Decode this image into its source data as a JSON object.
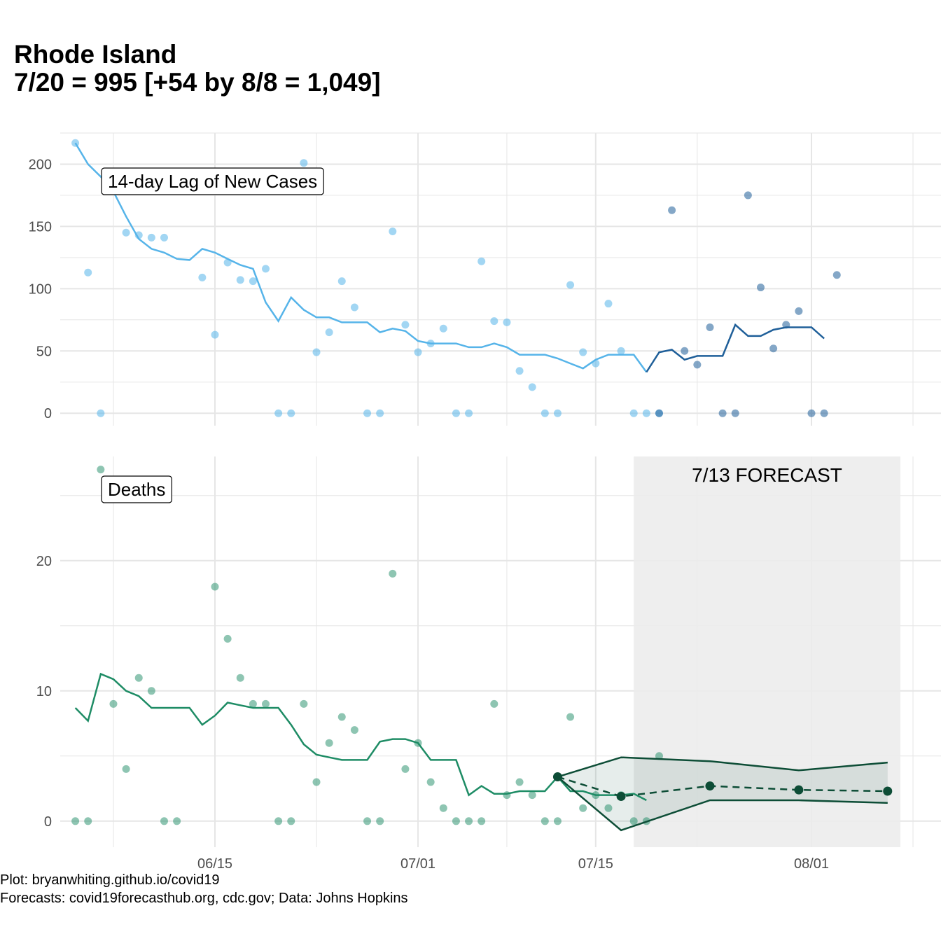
{
  "title": {
    "line1": "Rhode Island",
    "line2": "7/20 = 995 [+54 by 8/8 = 1,049]"
  },
  "caption": {
    "line1": "Plot: bryanwhiting.github.io/covid19",
    "line2": "Forecasts: covid19forecasthub.org, cdc.gov; Data: Johns Hopkins"
  },
  "colors": {
    "cases_light": "#56B4E9",
    "cases_dark": "#1F5F99",
    "deaths": "#1E8C65",
    "forecast": "#0D4D36",
    "forecast_band": "#EEEEEE",
    "grid": "#E6E6E6"
  },
  "chart_data": [
    {
      "type": "scatter",
      "panel_label": "14-day Lag of New Cases",
      "x_axis": {
        "type": "date",
        "range": [
          "2020-06-03",
          "2020-08-09"
        ],
        "tick_labels": [
          "06/15",
          "07/01",
          "07/15",
          "08/01"
        ],
        "tick_dates": [
          "2020-06-15",
          "2020-07-01",
          "2020-07-15",
          "2020-08-01"
        ]
      },
      "y_axis": {
        "range": [
          -10,
          225
        ],
        "ticks": [
          0,
          50,
          100,
          150,
          200
        ]
      },
      "grid": true,
      "points": [
        {
          "x": "2020-06-04",
          "y": 217
        },
        {
          "x": "2020-06-05",
          "y": 113
        },
        {
          "x": "2020-06-06",
          "y": 0
        },
        {
          "x": "2020-06-07",
          "y": 190
        },
        {
          "x": "2020-06-08",
          "y": 145
        },
        {
          "x": "2020-06-09",
          "y": 143
        },
        {
          "x": "2020-06-10",
          "y": 141
        },
        {
          "x": "2020-06-11",
          "y": 141
        },
        {
          "x": "2020-06-14",
          "y": 109
        },
        {
          "x": "2020-06-15",
          "y": 63
        },
        {
          "x": "2020-06-16",
          "y": 121
        },
        {
          "x": "2020-06-17",
          "y": 107
        },
        {
          "x": "2020-06-18",
          "y": 106
        },
        {
          "x": "2020-06-19",
          "y": 116
        },
        {
          "x": "2020-06-20",
          "y": 0
        },
        {
          "x": "2020-06-21",
          "y": 0
        },
        {
          "x": "2020-06-22",
          "y": 201
        },
        {
          "x": "2020-06-23",
          "y": 49
        },
        {
          "x": "2020-06-24",
          "y": 65
        },
        {
          "x": "2020-06-25",
          "y": 106
        },
        {
          "x": "2020-06-26",
          "y": 85
        },
        {
          "x": "2020-06-27",
          "y": 0
        },
        {
          "x": "2020-06-28",
          "y": 0
        },
        {
          "x": "2020-06-29",
          "y": 146
        },
        {
          "x": "2020-06-30",
          "y": 71
        },
        {
          "x": "2020-07-01",
          "y": 49
        },
        {
          "x": "2020-07-02",
          "y": 56
        },
        {
          "x": "2020-07-03",
          "y": 68
        },
        {
          "x": "2020-07-04",
          "y": 0
        },
        {
          "x": "2020-07-05",
          "y": 0
        },
        {
          "x": "2020-07-06",
          "y": 122
        },
        {
          "x": "2020-07-07",
          "y": 74
        },
        {
          "x": "2020-07-08",
          "y": 73
        },
        {
          "x": "2020-07-09",
          "y": 34
        },
        {
          "x": "2020-07-10",
          "y": 21
        },
        {
          "x": "2020-07-11",
          "y": 0
        },
        {
          "x": "2020-07-12",
          "y": 0
        },
        {
          "x": "2020-07-13",
          "y": 103
        },
        {
          "x": "2020-07-14",
          "y": 49
        },
        {
          "x": "2020-07-15",
          "y": 40
        },
        {
          "x": "2020-07-16",
          "y": 88
        },
        {
          "x": "2020-07-17",
          "y": 50
        },
        {
          "x": "2020-07-18",
          "y": 0
        },
        {
          "x": "2020-07-19",
          "y": 0
        },
        {
          "x": "2020-07-20",
          "y": 0
        }
      ],
      "points_recent": [
        {
          "x": "2020-07-20",
          "y": 0
        },
        {
          "x": "2020-07-21",
          "y": 163
        },
        {
          "x": "2020-07-22",
          "y": 50
        },
        {
          "x": "2020-07-23",
          "y": 39
        },
        {
          "x": "2020-07-24",
          "y": 69
        },
        {
          "x": "2020-07-25",
          "y": 0
        },
        {
          "x": "2020-07-26",
          "y": 0
        },
        {
          "x": "2020-07-27",
          "y": 175
        },
        {
          "x": "2020-07-28",
          "y": 101
        },
        {
          "x": "2020-07-29",
          "y": 52
        },
        {
          "x": "2020-07-30",
          "y": 71
        },
        {
          "x": "2020-07-31",
          "y": 82
        },
        {
          "x": "2020-08-01",
          "y": 0
        },
        {
          "x": "2020-08-02",
          "y": 0
        },
        {
          "x": "2020-08-03",
          "y": 111
        }
      ],
      "rolling_avg": [
        {
          "x": "2020-06-04",
          "y": 217
        },
        {
          "x": "2020-06-05",
          "y": 200
        },
        {
          "x": "2020-06-06",
          "y": 190
        },
        {
          "x": "2020-06-07",
          "y": 178
        },
        {
          "x": "2020-06-08",
          "y": 158
        },
        {
          "x": "2020-06-09",
          "y": 140
        },
        {
          "x": "2020-06-10",
          "y": 132
        },
        {
          "x": "2020-06-11",
          "y": 129
        },
        {
          "x": "2020-06-12",
          "y": 124
        },
        {
          "x": "2020-06-13",
          "y": 123
        },
        {
          "x": "2020-06-14",
          "y": 132
        },
        {
          "x": "2020-06-15",
          "y": 129
        },
        {
          "x": "2020-06-16",
          "y": 124
        },
        {
          "x": "2020-06-17",
          "y": 119
        },
        {
          "x": "2020-06-18",
          "y": 116
        },
        {
          "x": "2020-06-19",
          "y": 89
        },
        {
          "x": "2020-06-20",
          "y": 74
        },
        {
          "x": "2020-06-21",
          "y": 93
        },
        {
          "x": "2020-06-22",
          "y": 83
        },
        {
          "x": "2020-06-23",
          "y": 77
        },
        {
          "x": "2020-06-24",
          "y": 77
        },
        {
          "x": "2020-06-25",
          "y": 73
        },
        {
          "x": "2020-06-26",
          "y": 73
        },
        {
          "x": "2020-06-27",
          "y": 73
        },
        {
          "x": "2020-06-28",
          "y": 65
        },
        {
          "x": "2020-06-29",
          "y": 68
        },
        {
          "x": "2020-06-30",
          "y": 66
        },
        {
          "x": "2020-07-01",
          "y": 58
        },
        {
          "x": "2020-07-02",
          "y": 56
        },
        {
          "x": "2020-07-03",
          "y": 56
        },
        {
          "x": "2020-07-04",
          "y": 56
        },
        {
          "x": "2020-07-05",
          "y": 53
        },
        {
          "x": "2020-07-06",
          "y": 53
        },
        {
          "x": "2020-07-07",
          "y": 56
        },
        {
          "x": "2020-07-08",
          "y": 53
        },
        {
          "x": "2020-07-09",
          "y": 47
        },
        {
          "x": "2020-07-10",
          "y": 47
        },
        {
          "x": "2020-07-11",
          "y": 47
        },
        {
          "x": "2020-07-12",
          "y": 44
        },
        {
          "x": "2020-07-13",
          "y": 40
        },
        {
          "x": "2020-07-14",
          "y": 36
        },
        {
          "x": "2020-07-15",
          "y": 43
        },
        {
          "x": "2020-07-16",
          "y": 47
        },
        {
          "x": "2020-07-17",
          "y": 47
        },
        {
          "x": "2020-07-18",
          "y": 47
        },
        {
          "x": "2020-07-19",
          "y": 33
        }
      ],
      "rolling_avg_recent": [
        {
          "x": "2020-07-19",
          "y": 33
        },
        {
          "x": "2020-07-20",
          "y": 49
        },
        {
          "x": "2020-07-21",
          "y": 51
        },
        {
          "x": "2020-07-22",
          "y": 43
        },
        {
          "x": "2020-07-23",
          "y": 46
        },
        {
          "x": "2020-07-24",
          "y": 46
        },
        {
          "x": "2020-07-25",
          "y": 46
        },
        {
          "x": "2020-07-26",
          "y": 71
        },
        {
          "x": "2020-07-27",
          "y": 62
        },
        {
          "x": "2020-07-28",
          "y": 62
        },
        {
          "x": "2020-07-29",
          "y": 67
        },
        {
          "x": "2020-07-30",
          "y": 69
        },
        {
          "x": "2020-07-31",
          "y": 69
        },
        {
          "x": "2020-08-01",
          "y": 69
        },
        {
          "x": "2020-08-02",
          "y": 60
        }
      ]
    },
    {
      "type": "scatter",
      "panel_label": "Deaths",
      "forecast_label": "7/13 FORECAST",
      "forecast_window": [
        "2020-07-18",
        "2020-08-08"
      ],
      "x_axis": {
        "type": "date",
        "range": [
          "2020-06-03",
          "2020-08-09"
        ],
        "tick_labels": [
          "06/15",
          "07/01",
          "07/15",
          "08/01"
        ],
        "tick_dates": [
          "2020-06-15",
          "2020-07-01",
          "2020-07-15",
          "2020-08-01"
        ]
      },
      "y_axis": {
        "range": [
          -2,
          28
        ],
        "ticks": [
          0,
          10,
          20
        ]
      },
      "grid": true,
      "points": [
        {
          "x": "2020-06-04",
          "y": 0
        },
        {
          "x": "2020-06-05",
          "y": 0
        },
        {
          "x": "2020-06-06",
          "y": 27
        },
        {
          "x": "2020-06-07",
          "y": 9
        },
        {
          "x": "2020-06-08",
          "y": 4
        },
        {
          "x": "2020-06-09",
          "y": 11
        },
        {
          "x": "2020-06-10",
          "y": 10
        },
        {
          "x": "2020-06-11",
          "y": 0
        },
        {
          "x": "2020-06-12",
          "y": 0
        },
        {
          "x": "2020-06-15",
          "y": 18
        },
        {
          "x": "2020-06-16",
          "y": 14
        },
        {
          "x": "2020-06-17",
          "y": 11
        },
        {
          "x": "2020-06-18",
          "y": 9
        },
        {
          "x": "2020-06-19",
          "y": 9
        },
        {
          "x": "2020-06-20",
          "y": 0
        },
        {
          "x": "2020-06-21",
          "y": 0
        },
        {
          "x": "2020-06-22",
          "y": 9
        },
        {
          "x": "2020-06-23",
          "y": 3
        },
        {
          "x": "2020-06-24",
          "y": 6
        },
        {
          "x": "2020-06-25",
          "y": 8
        },
        {
          "x": "2020-06-26",
          "y": 7
        },
        {
          "x": "2020-06-27",
          "y": 0
        },
        {
          "x": "2020-06-28",
          "y": 0
        },
        {
          "x": "2020-06-29",
          "y": 19
        },
        {
          "x": "2020-06-30",
          "y": 4
        },
        {
          "x": "2020-07-01",
          "y": 6
        },
        {
          "x": "2020-07-02",
          "y": 3
        },
        {
          "x": "2020-07-03",
          "y": 1
        },
        {
          "x": "2020-07-04",
          "y": 0
        },
        {
          "x": "2020-07-05",
          "y": 0
        },
        {
          "x": "2020-07-06",
          "y": 0
        },
        {
          "x": "2020-07-07",
          "y": 9
        },
        {
          "x": "2020-07-08",
          "y": 2
        },
        {
          "x": "2020-07-09",
          "y": 3
        },
        {
          "x": "2020-07-10",
          "y": 2
        },
        {
          "x": "2020-07-11",
          "y": 0
        },
        {
          "x": "2020-07-12",
          "y": 0
        },
        {
          "x": "2020-07-13",
          "y": 8
        },
        {
          "x": "2020-07-14",
          "y": 1
        },
        {
          "x": "2020-07-15",
          "y": 2
        },
        {
          "x": "2020-07-16",
          "y": 1
        },
        {
          "x": "2020-07-17",
          "y": 2
        },
        {
          "x": "2020-07-18",
          "y": 0
        },
        {
          "x": "2020-07-19",
          "y": 0
        },
        {
          "x": "2020-07-20",
          "y": 5
        }
      ],
      "rolling_avg": [
        {
          "x": "2020-06-04",
          "y": 8.7
        },
        {
          "x": "2020-06-05",
          "y": 7.7
        },
        {
          "x": "2020-06-06",
          "y": 11.3
        },
        {
          "x": "2020-06-07",
          "y": 10.9
        },
        {
          "x": "2020-06-08",
          "y": 10.0
        },
        {
          "x": "2020-06-09",
          "y": 9.6
        },
        {
          "x": "2020-06-10",
          "y": 8.7
        },
        {
          "x": "2020-06-11",
          "y": 8.7
        },
        {
          "x": "2020-06-12",
          "y": 8.7
        },
        {
          "x": "2020-06-13",
          "y": 8.7
        },
        {
          "x": "2020-06-14",
          "y": 7.4
        },
        {
          "x": "2020-06-15",
          "y": 8.1
        },
        {
          "x": "2020-06-16",
          "y": 9.1
        },
        {
          "x": "2020-06-17",
          "y": 8.9
        },
        {
          "x": "2020-06-18",
          "y": 8.7
        },
        {
          "x": "2020-06-19",
          "y": 8.7
        },
        {
          "x": "2020-06-20",
          "y": 8.7
        },
        {
          "x": "2020-06-21",
          "y": 7.4
        },
        {
          "x": "2020-06-22",
          "y": 5.9
        },
        {
          "x": "2020-06-23",
          "y": 5.1
        },
        {
          "x": "2020-06-24",
          "y": 4.9
        },
        {
          "x": "2020-06-25",
          "y": 4.7
        },
        {
          "x": "2020-06-26",
          "y": 4.7
        },
        {
          "x": "2020-06-27",
          "y": 4.7
        },
        {
          "x": "2020-06-28",
          "y": 6.1
        },
        {
          "x": "2020-06-29",
          "y": 6.3
        },
        {
          "x": "2020-06-30",
          "y": 6.3
        },
        {
          "x": "2020-07-01",
          "y": 6.0
        },
        {
          "x": "2020-07-02",
          "y": 4.7
        },
        {
          "x": "2020-07-03",
          "y": 4.7
        },
        {
          "x": "2020-07-04",
          "y": 4.7
        },
        {
          "x": "2020-07-05",
          "y": 2.0
        },
        {
          "x": "2020-07-06",
          "y": 2.7
        },
        {
          "x": "2020-07-07",
          "y": 2.1
        },
        {
          "x": "2020-07-08",
          "y": 2.1
        },
        {
          "x": "2020-07-09",
          "y": 2.3
        },
        {
          "x": "2020-07-10",
          "y": 2.3
        },
        {
          "x": "2020-07-11",
          "y": 2.3
        },
        {
          "x": "2020-07-12",
          "y": 3.4
        },
        {
          "x": "2020-07-13",
          "y": 2.3
        },
        {
          "x": "2020-07-14",
          "y": 2.3
        },
        {
          "x": "2020-07-15",
          "y": 2.0
        },
        {
          "x": "2020-07-16",
          "y": 2.0
        },
        {
          "x": "2020-07-17",
          "y": 2.0
        },
        {
          "x": "2020-07-18",
          "y": 2.1
        },
        {
          "x": "2020-07-19",
          "y": 1.6
        }
      ],
      "forecast_points": [
        {
          "x": "2020-07-12",
          "y": 3.4
        },
        {
          "x": "2020-07-17",
          "y": 1.9
        },
        {
          "x": "2020-07-24",
          "y": 2.7
        },
        {
          "x": "2020-07-31",
          "y": 2.4
        },
        {
          "x": "2020-08-07",
          "y": 2.3
        }
      ],
      "forecast_upper": [
        {
          "x": "2020-07-12",
          "y": 3.4
        },
        {
          "x": "2020-07-17",
          "y": 4.9
        },
        {
          "x": "2020-07-24",
          "y": 4.6
        },
        {
          "x": "2020-07-31",
          "y": 3.9
        },
        {
          "x": "2020-08-07",
          "y": 4.5
        }
      ],
      "forecast_lower": [
        {
          "x": "2020-07-12",
          "y": 3.4
        },
        {
          "x": "2020-07-17",
          "y": -0.7
        },
        {
          "x": "2020-07-24",
          "y": 1.6
        },
        {
          "x": "2020-07-31",
          "y": 1.6
        },
        {
          "x": "2020-08-07",
          "y": 1.4
        }
      ]
    }
  ]
}
